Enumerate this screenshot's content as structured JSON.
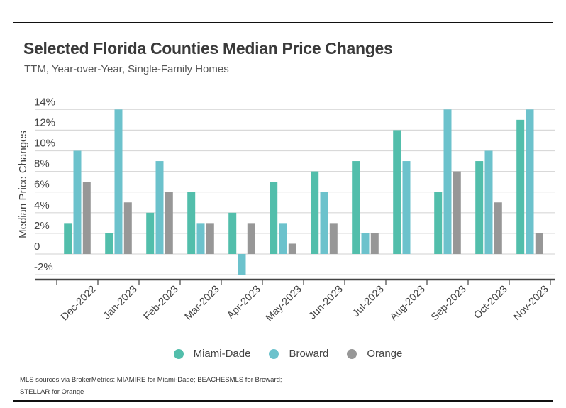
{
  "header": {
    "title": "Selected Florida Counties Median Price Changes",
    "subtitle": "TTM, Year-over-Year, Single-Family Homes"
  },
  "colors": {
    "Miami-Dade": "#52BEAB",
    "Broward": "#6CC2CC",
    "Orange": "#979797"
  },
  "chart_data": {
    "type": "bar",
    "title": "Selected Florida Counties Median Price Changes",
    "subtitle": "TTM, Year-over-Year, Single-Family Homes",
    "xlabel": "",
    "ylabel": "Median Price Changes",
    "ylim": [
      -2,
      14
    ],
    "yticks": [
      -2,
      0,
      2,
      4,
      6,
      8,
      10,
      12,
      14
    ],
    "ytick_labels": [
      "-2%",
      "0",
      "2%",
      "4%",
      "6%",
      "8%",
      "10%",
      "12%",
      "14%"
    ],
    "grid": true,
    "legend_position": "bottom-center",
    "categories": [
      "Dec-2022",
      "Jan-2023",
      "Feb-2023",
      "Mar-2023",
      "Apr-2023",
      "May-2023",
      "Jun-2023",
      "Jul-2023",
      "Aug-2023",
      "Sep-2023",
      "Oct-2023",
      "Nov-2023"
    ],
    "series": [
      {
        "name": "Miami-Dade",
        "values": [
          3,
          2,
          4,
          6,
          4,
          7,
          8,
          9,
          12,
          6,
          9,
          13
        ]
      },
      {
        "name": "Broward",
        "values": [
          10,
          14,
          9,
          3,
          -2,
          3,
          6,
          2,
          9,
          14,
          10,
          14
        ]
      },
      {
        "name": "Orange",
        "values": [
          7,
          5,
          6,
          3,
          3,
          1,
          3,
          2,
          0,
          8,
          5,
          2
        ]
      }
    ]
  },
  "legend": {
    "items": [
      "Miami-Dade",
      "Broward",
      "Orange"
    ]
  },
  "footer": {
    "source_line1": "MLS sources via BrokerMetrics: MIAMIRE for Miami-Dade; BEACHESMLS for Broward;",
    "source_line2": "STELLAR for Orange"
  }
}
